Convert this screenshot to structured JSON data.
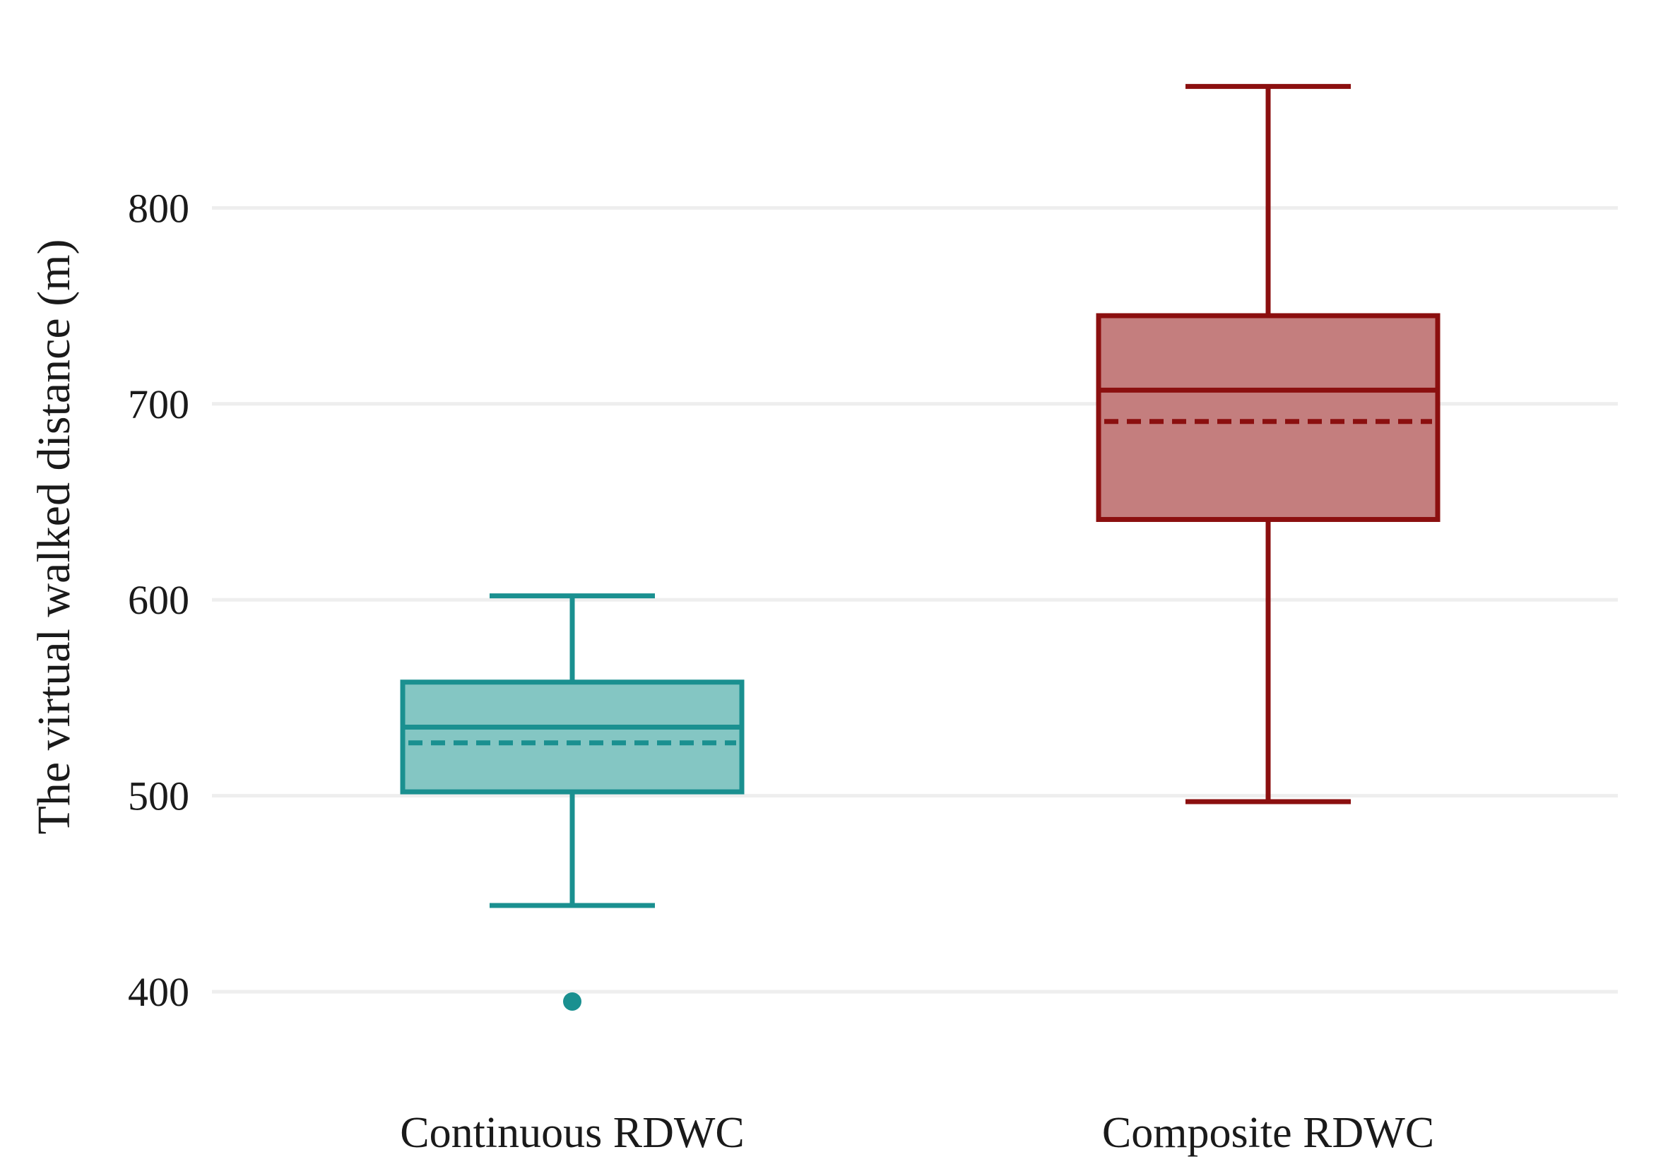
{
  "chart_data": {
    "type": "box",
    "ylabel": "The virtual walked distance (m)",
    "xlabel": "",
    "title": "",
    "ylim": [
      373,
      887
    ],
    "yticks": [
      400,
      500,
      600,
      700,
      800
    ],
    "grid": true,
    "categories": [
      "Continuous RDWC",
      "Composite RDWC"
    ],
    "series": [
      {
        "category": "Continuous RDWC",
        "color": "#1a9090",
        "fill": "#84c6c3",
        "whisker_low": 444,
        "q1": 502,
        "median": 535,
        "mean": 527,
        "q3": 558,
        "whisker_high": 602,
        "outliers": [
          395
        ]
      },
      {
        "category": "Composite RDWC",
        "color": "#8b0f0f",
        "fill": "#c47e7e",
        "whisker_low": 497,
        "q1": 641,
        "median": 707,
        "mean": 691,
        "q3": 745,
        "whisker_high": 862,
        "outliers": []
      }
    ]
  }
}
